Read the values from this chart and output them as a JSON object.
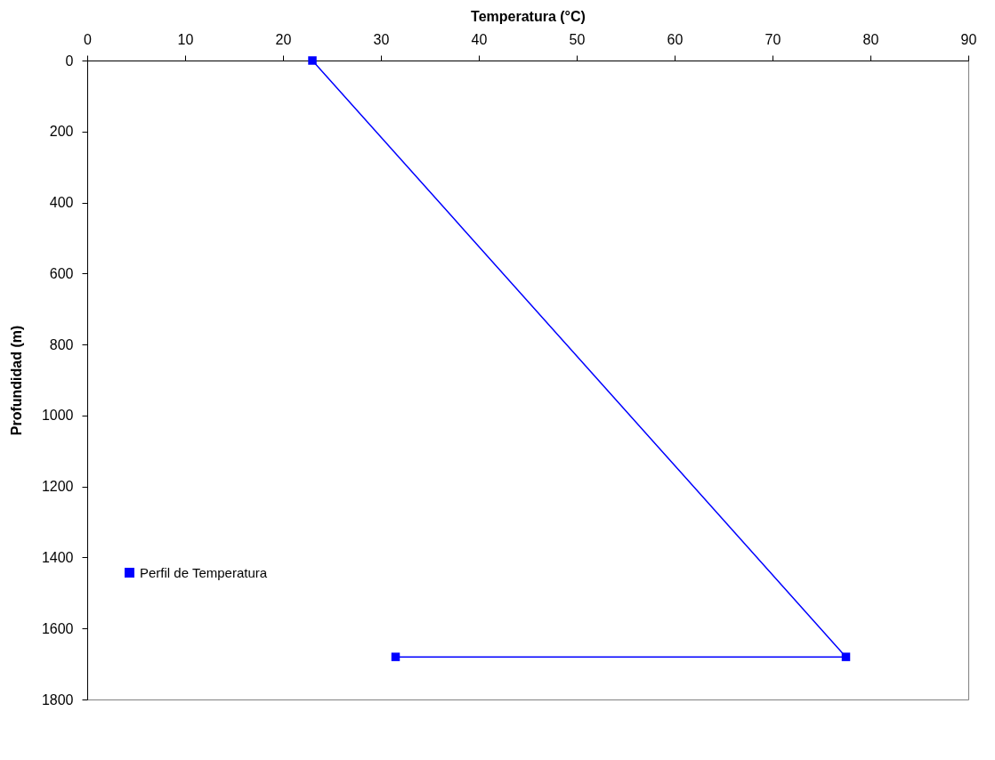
{
  "chart_data": {
    "type": "line",
    "xlabel": "Temperatura (°C)",
    "ylabel": "Profundidad (m)",
    "xlim": [
      0,
      90
    ],
    "xticks": [
      0,
      10,
      20,
      30,
      40,
      50,
      60,
      70,
      80,
      90
    ],
    "ylim": [
      1800,
      0
    ],
    "yticks": [
      0,
      200,
      400,
      600,
      800,
      1000,
      1200,
      1400,
      1600,
      1800
    ],
    "series": [
      {
        "name": "Perfil de Temperatura",
        "color": "#0000ff",
        "x": [
          23,
          77.5,
          31.5
        ],
        "values": [
          0,
          1680,
          1680
        ]
      }
    ],
    "marker": "square",
    "line_style": "solid",
    "grid": false,
    "legend": "bottom left"
  }
}
